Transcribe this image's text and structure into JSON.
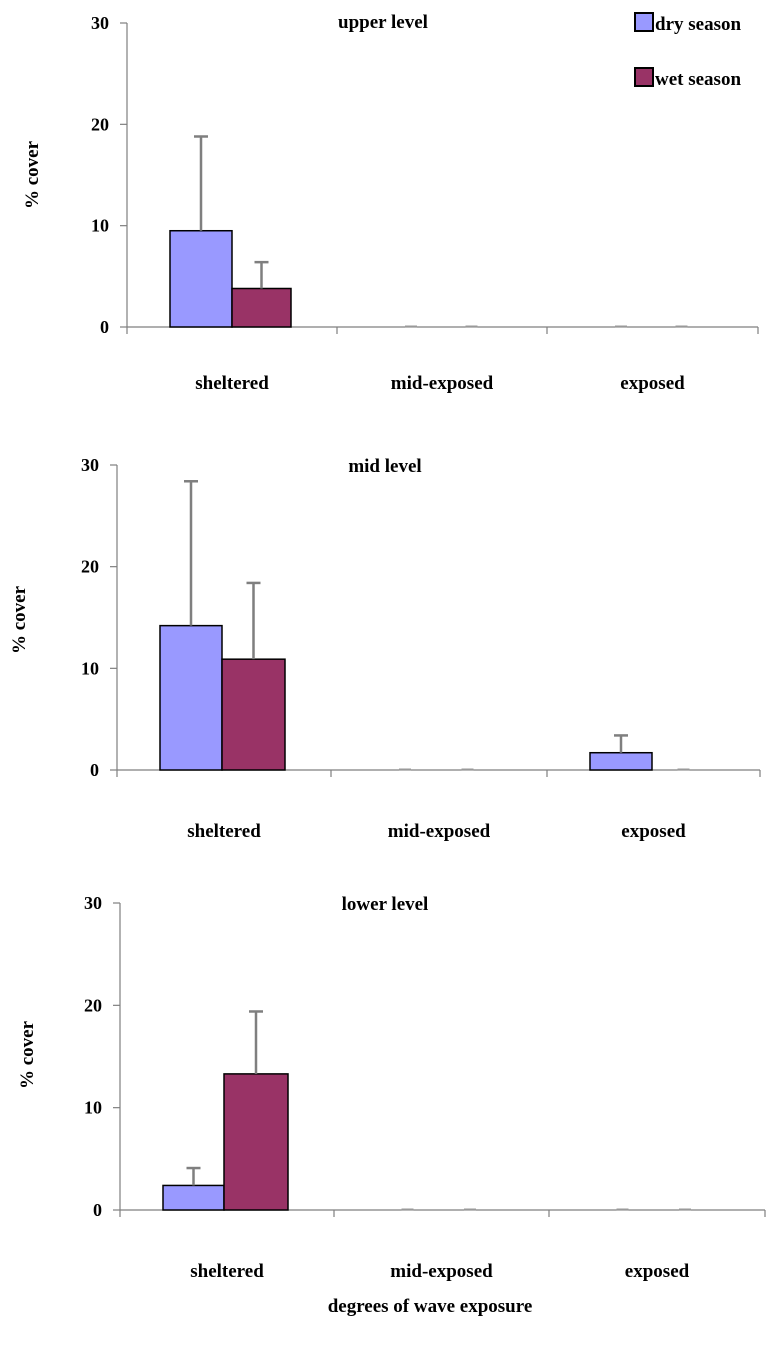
{
  "chart_data": {
    "type": "bar",
    "xlabel": "degrees of wave exposure",
    "legend": {
      "position": "top-right",
      "entries": [
        {
          "name": "dry season",
          "color": "#9999ff"
        },
        {
          "name": "wet season",
          "color": "#993366"
        }
      ]
    },
    "panels": [
      {
        "title": "upper level",
        "ylabel": "% cover",
        "ylim": [
          0,
          30
        ],
        "yticks": [
          "0",
          "10",
          "20",
          "30"
        ],
        "categories": [
          "sheltered",
          "mid-exposed",
          "exposed"
        ],
        "series": [
          {
            "name": "dry season",
            "values": [
              9.5,
              0,
              0
            ],
            "errors": [
              9.3,
              0,
              0
            ]
          },
          {
            "name": "wet season",
            "values": [
              3.8,
              0,
              0
            ],
            "errors": [
              2.6,
              0,
              0
            ]
          }
        ]
      },
      {
        "title": "mid level",
        "ylabel": "% cover",
        "ylim": [
          0,
          30
        ],
        "yticks": [
          "0",
          "10",
          "20",
          "30"
        ],
        "categories": [
          "sheltered",
          "mid-exposed",
          "exposed"
        ],
        "series": [
          {
            "name": "dry season",
            "values": [
              14.2,
              0,
              1.7
            ],
            "errors": [
              14.2,
              0,
              1.7
            ]
          },
          {
            "name": "wet season",
            "values": [
              10.9,
              0,
              0
            ],
            "errors": [
              7.5,
              0,
              0
            ]
          }
        ]
      },
      {
        "title": "lower level",
        "ylabel": "% cover",
        "ylim": [
          0,
          30
        ],
        "yticks": [
          "0",
          "10",
          "20",
          "30"
        ],
        "categories": [
          "sheltered",
          "mid-exposed",
          "exposed"
        ],
        "series": [
          {
            "name": "dry season",
            "values": [
              2.4,
              0,
              0
            ],
            "errors": [
              1.7,
              0,
              0
            ]
          },
          {
            "name": "wet season",
            "values": [
              13.3,
              0,
              0
            ],
            "errors": [
              6.1,
              0,
              0
            ]
          }
        ]
      }
    ]
  }
}
